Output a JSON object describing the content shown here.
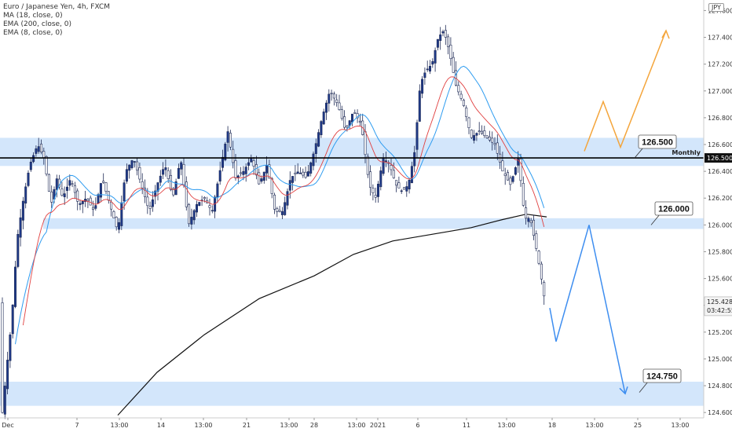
{
  "legend": {
    "title": "Euro / Japanese Yen, 4h, FXCM",
    "ind1": "MA (18, close, 0)",
    "ind2": "EMA (200, close, 0)",
    "ind3": "EMA (8, close, 0)"
  },
  "currency": "JPY",
  "chart_data": {
    "type": "candlestick",
    "symbol": "Euro / Japanese Yen",
    "timeframe": "4h",
    "ylim": [
      124.56,
      127.62
    ],
    "y_ticks": [
      "124.600",
      "124.800",
      "125.000",
      "125.200",
      "125.400",
      "125.600",
      "125.800",
      "126.000",
      "126.200",
      "126.400",
      "126.600",
      "126.800",
      "127.000",
      "127.200",
      "127.400",
      "127.600"
    ],
    "x_ticks": [
      "Dec",
      "7",
      "13:00",
      "14",
      "13:00",
      "21",
      "13:00",
      "28",
      "13:00",
      "2021",
      "6",
      "11",
      "13:00",
      "18",
      "13:00",
      "25",
      "13:00"
    ],
    "current_price": "125.428",
    "countdown": "03:42:55",
    "zones": [
      {
        "low": 126.44,
        "high": 126.65
      },
      {
        "low": 125.97,
        "high": 126.05
      },
      {
        "low": 124.65,
        "high": 124.83
      }
    ],
    "horizontal_line": {
      "price": 126.5,
      "label": "Monthly",
      "tag": "126.500"
    },
    "callouts": [
      "126.500",
      "126.000",
      "124.750"
    ],
    "colors": {
      "bull": "#1e3a8a",
      "bear": "#ffffff",
      "ma18": "#2e9cf0",
      "ema200": "#111111",
      "ema8": "#e04040",
      "zone": "#d3e6fb",
      "orange_path": "#f4a53b",
      "blue_path": "#3e8ef0"
    },
    "orange_projection": [
      126.55,
      126.92,
      126.58,
      127.45
    ],
    "blue_projection": [
      125.38,
      125.13,
      126.0,
      124.74
    ]
  }
}
